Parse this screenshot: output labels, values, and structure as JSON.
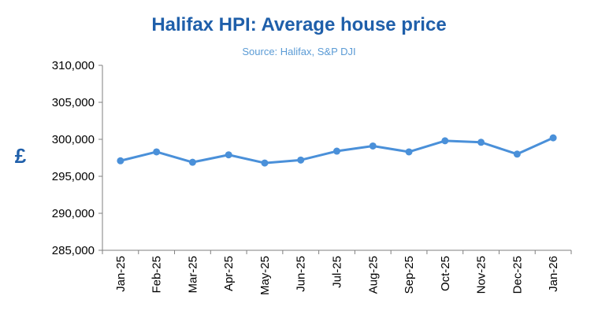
{
  "chart_data": {
    "type": "line",
    "title": "Halifax HPI: Average house price",
    "subtitle": "Source: Halifax, S&P DJI",
    "ylabel": "£",
    "xlabel": "",
    "categories": [
      "Jan-25",
      "Feb-25",
      "Mar-25",
      "Apr-25",
      "May-25",
      "Jun-25",
      "Jul-25",
      "Aug-25",
      "Sep-25",
      "Oct-25",
      "Nov-25",
      "Dec-25",
      "Jan-26"
    ],
    "series": [
      {
        "values": [
          297100,
          298300,
          296900,
          297900,
          296800,
          297200,
          298400,
          299100,
          298300,
          299800,
          299600,
          298000,
          300200
        ]
      }
    ],
    "ylim": [
      285000,
      310000
    ],
    "yticks": [
      285000,
      290000,
      295000,
      300000,
      305000,
      310000
    ],
    "ytick_labels": [
      "285,000",
      "290,000",
      "295,000",
      "300,000",
      "305,000",
      "310,000"
    ],
    "grid": false,
    "legend": "none",
    "line_color": "#4a90d9"
  }
}
